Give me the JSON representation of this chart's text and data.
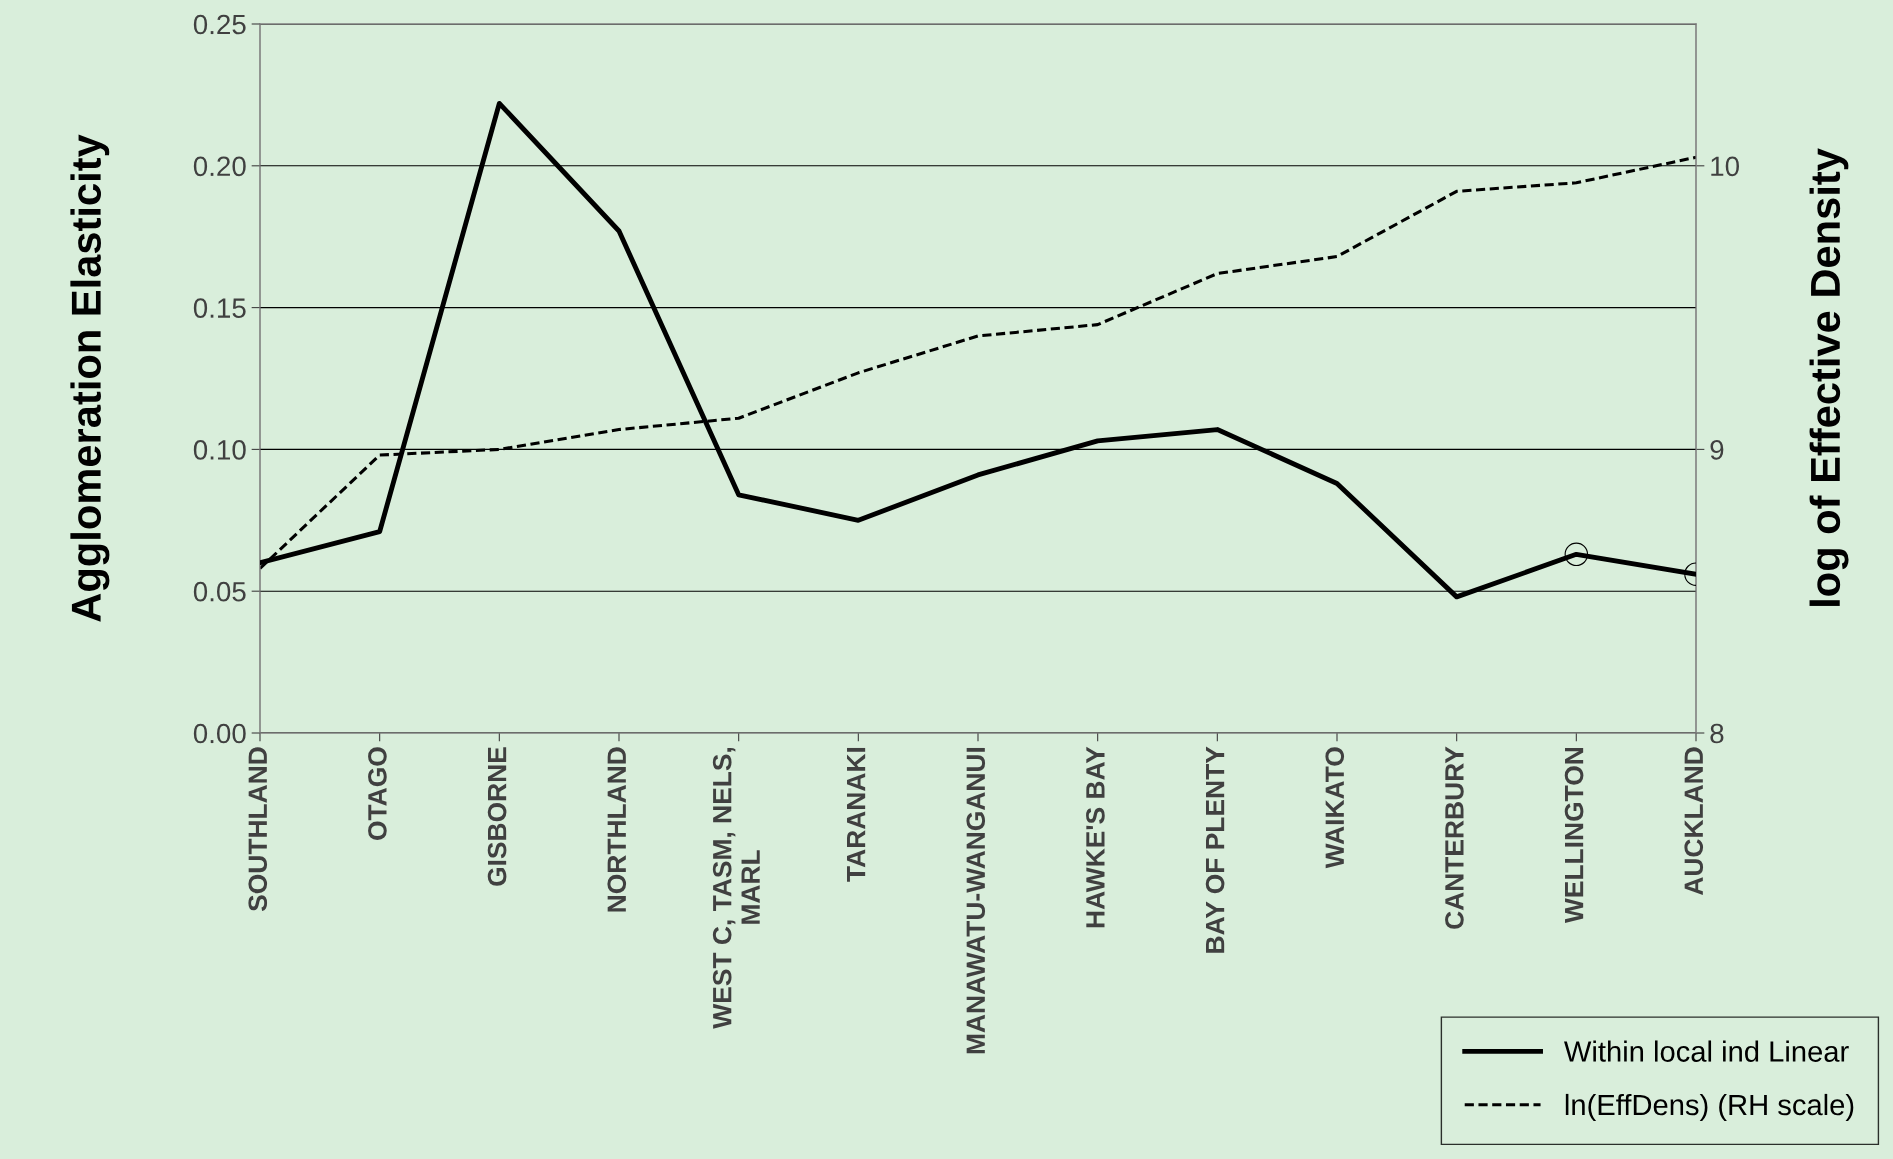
{
  "chart_data": {
    "type": "line",
    "ylabel": "Agglomeration Elasticity",
    "y2label": "log of Effective Density",
    "categories": [
      "SOUTHLAND",
      "OTAGO",
      "GISBORNE",
      "NORTHLAND",
      "WEST C, TASM, NELS,\nMARL",
      "TARANAKI",
      "MANAWATU-WANGANUI",
      "HAWKE'S BAY",
      "BAY OF PLENTY",
      "WAIKATO",
      "CANTERBURY",
      "WELLINGTON",
      "AUCKLAND"
    ],
    "series": [
      {
        "name": "Within local ind Linear",
        "color": "#000000",
        "line_style": "solid",
        "values": [
          0.06,
          0.071,
          0.222,
          0.177,
          0.084,
          0.075,
          0.091,
          0.103,
          0.107,
          0.088,
          0.048,
          0.063,
          0.056
        ]
      },
      {
        "name": "ln(EffDens) (RH scale)",
        "color": "#000000",
        "line_style": "dashed",
        "axis": "y2",
        "values": [
          8.58,
          8.98,
          9.0,
          9.07,
          9.11,
          9.27,
          9.4,
          9.44,
          9.62,
          9.68,
          9.91,
          9.94,
          10.03
        ]
      },
      {
        "type": "scatter",
        "color": "#000000",
        "marker": "circle",
        "x": [
          "WELLINGTON",
          "AUCKLAND"
        ],
        "values": [
          0.063,
          0.056
        ]
      }
    ],
    "ylim": [
      0,
      0.25
    ],
    "yticks": [
      {
        "value": 0,
        "label": "0.00"
      },
      {
        "value": 0.05,
        "label": "0.05"
      },
      {
        "value": 0.1,
        "label": "0.10"
      },
      {
        "value": 0.15,
        "label": "0.15"
      },
      {
        "value": 0.2,
        "label": "0.20"
      },
      {
        "value": 0.25,
        "label": "0.25"
      }
    ],
    "y2lim": [
      8,
      10.5
    ],
    "y2ticks": [
      8,
      9,
      10
    ],
    "grid": "y",
    "legend": "bottom right",
    "marker": "none"
  }
}
